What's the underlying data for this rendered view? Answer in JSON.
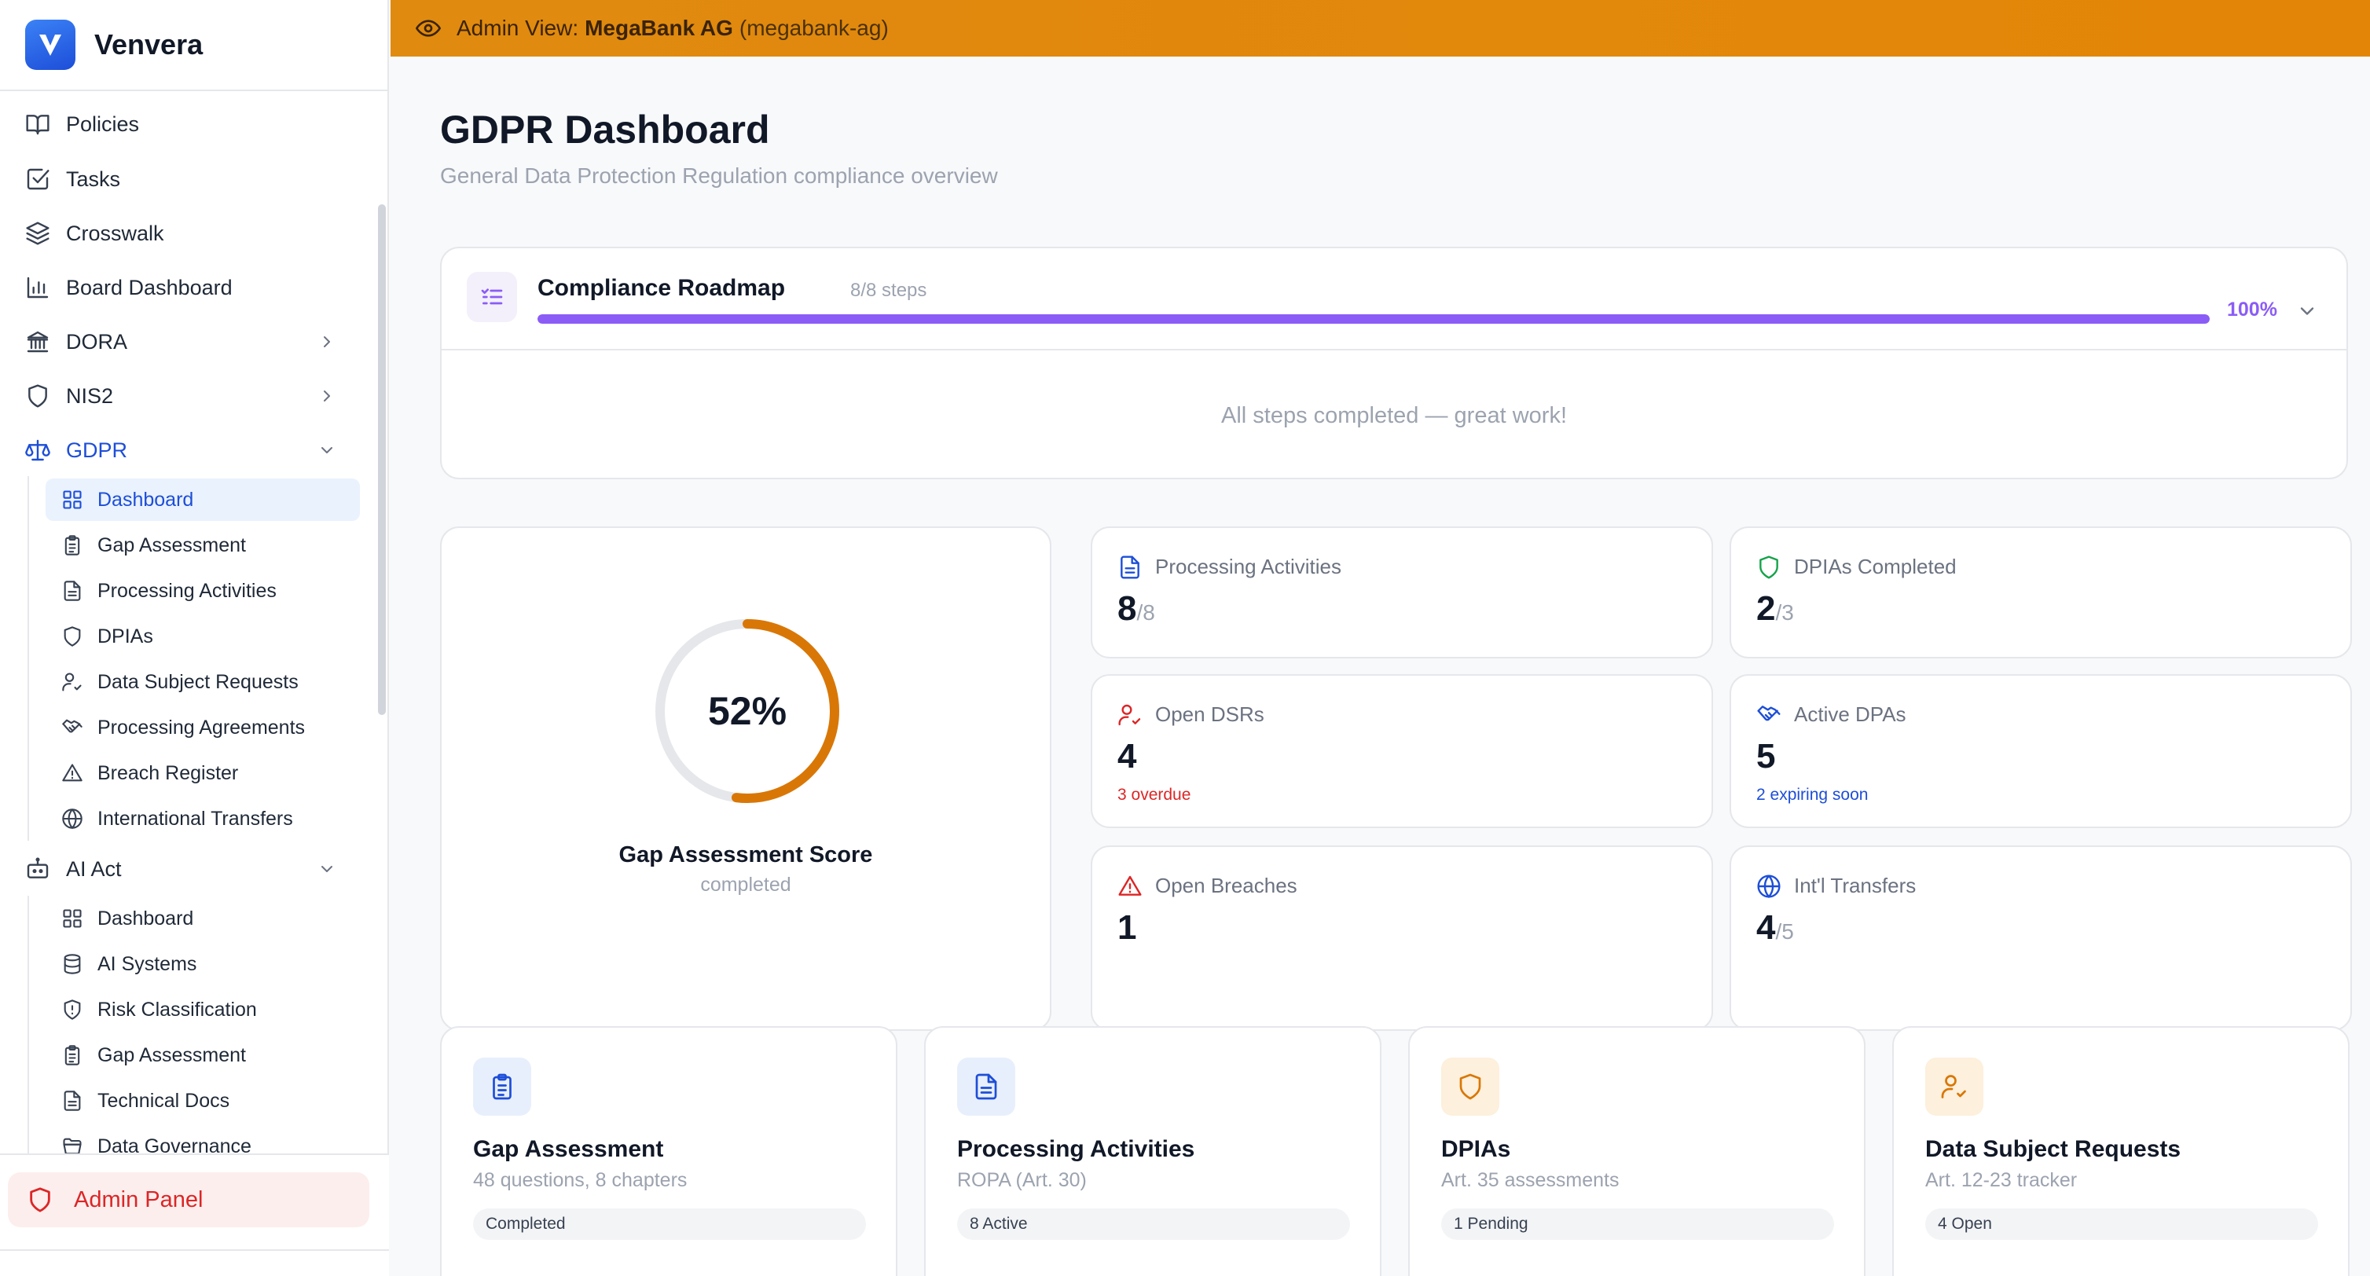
{
  "app": {
    "name": "Venvera"
  },
  "banner": {
    "prefix": "Admin View:",
    "org_name": "MegaBank AG",
    "org_slug": "(megabank-ag)"
  },
  "sidebar": {
    "items": [
      {
        "label": "Policies"
      },
      {
        "label": "Tasks"
      },
      {
        "label": "Crosswalk"
      },
      {
        "label": "Board Dashboard"
      },
      {
        "label": "DORA"
      },
      {
        "label": "NIS2"
      },
      {
        "label": "GDPR"
      },
      {
        "label": "AI Act"
      }
    ],
    "gdpr_sub": [
      {
        "label": "Dashboard"
      },
      {
        "label": "Gap Assessment"
      },
      {
        "label": "Processing Activities"
      },
      {
        "label": "DPIAs"
      },
      {
        "label": "Data Subject Requests"
      },
      {
        "label": "Processing Agreements"
      },
      {
        "label": "Breach Register"
      },
      {
        "label": "International Transfers"
      }
    ],
    "ai_sub": [
      {
        "label": "Dashboard"
      },
      {
        "label": "AI Systems"
      },
      {
        "label": "Risk Classification"
      },
      {
        "label": "Gap Assessment"
      },
      {
        "label": "Technical Docs"
      },
      {
        "label": "Data Governance"
      }
    ],
    "admin_panel": "Admin Panel"
  },
  "page": {
    "title": "GDPR Dashboard",
    "subtitle": "General Data Protection Regulation compliance overview"
  },
  "roadmap": {
    "title": "Compliance Roadmap",
    "steps": "8/8 steps",
    "percent_label": "100%",
    "progress": 1.0,
    "done_message": "All steps completed — great work!"
  },
  "score": {
    "value_label": "52%",
    "fraction": 0.52,
    "label": "Gap Assessment Score",
    "sub": "completed"
  },
  "stats": {
    "processing": {
      "label": "Processing Activities",
      "value": "8",
      "denom": "/8"
    },
    "dpias": {
      "label": "DPIAs Completed",
      "value": "2",
      "denom": "/3"
    },
    "dsrs": {
      "label": "Open DSRs",
      "value": "4",
      "note": "3 overdue"
    },
    "dpas": {
      "label": "Active DPAs",
      "value": "5",
      "note": "2 expiring soon"
    },
    "breaches": {
      "label": "Open Breaches",
      "value": "1"
    },
    "transfers": {
      "label": "Int'l Transfers",
      "value": "4",
      "denom": "/5"
    }
  },
  "modules": [
    {
      "title": "Gap Assessment",
      "sub": "48 questions, 8 chapters",
      "badge": "Completed"
    },
    {
      "title": "Processing Activities",
      "sub": "ROPA (Art. 30)",
      "badge": "8 Active"
    },
    {
      "title": "DPIAs",
      "sub": "Art. 35 assessments",
      "badge": "1 Pending"
    },
    {
      "title": "Data Subject Requests",
      "sub": "Art. 12-23 tracker",
      "badge": "4 Open"
    }
  ],
  "colors": {
    "accent_blue": "#1d4ed8",
    "roadmap_purple": "#8b5cf6",
    "gauge_orange": "#d97706",
    "banner_orange": "#e38607",
    "danger_red": "#dc2626"
  }
}
